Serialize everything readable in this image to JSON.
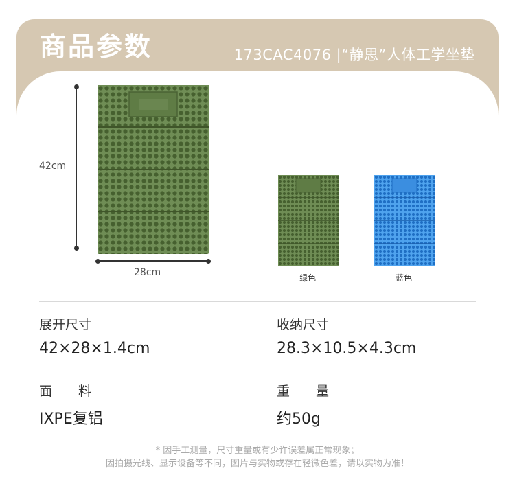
{
  "header": {
    "title": "商品参数",
    "subtitle": "173CAC4076 |“静思”人体工学坐垫"
  },
  "dimensions": {
    "height_label": "42cm",
    "width_label": "28cm"
  },
  "colors": [
    {
      "label": "绿色",
      "hex": "#5c7a48"
    },
    {
      "label": "蓝色",
      "hex": "#3a8fdb"
    }
  ],
  "specs": [
    {
      "label": "展开尺寸",
      "value": "42×28×1.4cm"
    },
    {
      "label": "收纳尺寸",
      "value": "28.3×10.5×4.3cm"
    },
    {
      "label": "面　　料",
      "value": "IXPE复铝"
    },
    {
      "label": "重　　量",
      "value": "约50g"
    }
  ],
  "notes": {
    "line1": "* 因手工测量，尺寸重量或有少许误差属正常现象；",
    "line2": "因拍摄光线、显示设备等不同，图片与实物或存在轻微色差，请以实物为准！"
  }
}
